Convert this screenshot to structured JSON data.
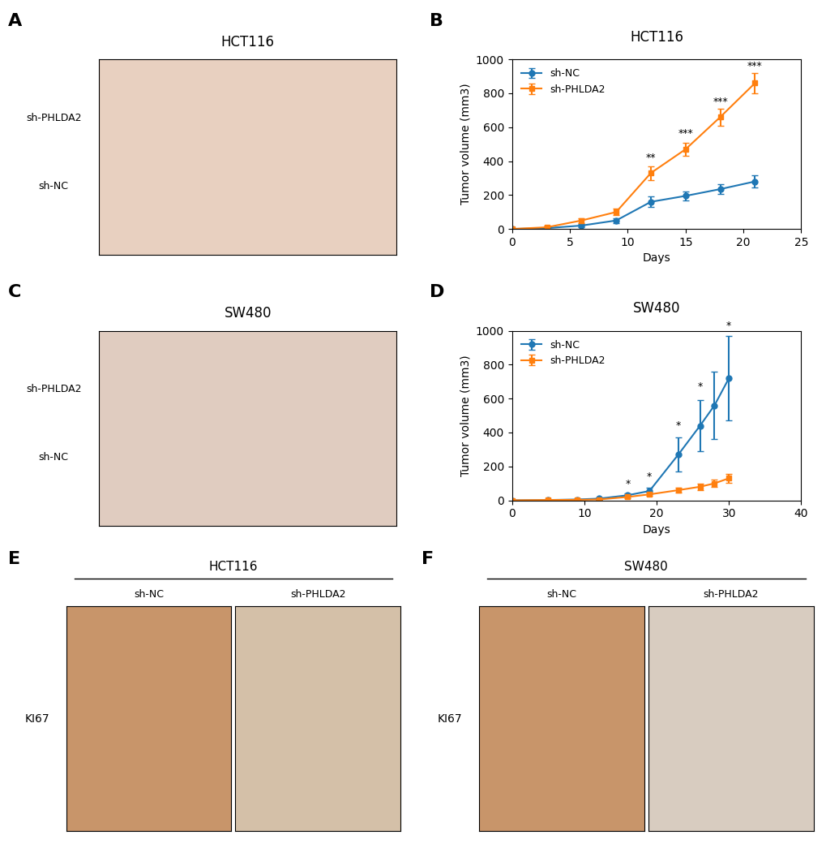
{
  "chart_data": [
    {
      "type": "image",
      "panel": "A",
      "title": "HCT116",
      "annotations": [
        "sh-PHLDA2",
        "sh-NC"
      ],
      "color": "#e8d0c0"
    },
    {
      "type": "line",
      "panel": "B",
      "title": "HCT116",
      "xlabel": "Days",
      "ylabel": "Tumor volume (mm3)",
      "xlim": [
        0,
        25
      ],
      "ylim": [
        0,
        1000
      ],
      "xticks": [
        0,
        5,
        10,
        15,
        20,
        25
      ],
      "yticks": [
        0,
        200,
        400,
        600,
        800,
        1000
      ],
      "x": [
        0,
        3,
        6,
        9,
        12,
        15,
        18,
        21
      ],
      "series": [
        {
          "name": "sh-NC",
          "marker": "o",
          "values": [
            0,
            5,
            20,
            50,
            160,
            195,
            235,
            280
          ],
          "error": [
            0,
            5,
            10,
            15,
            30,
            25,
            30,
            35
          ]
        },
        {
          "name": "sh-PHLDA2",
          "marker": "s",
          "values": [
            0,
            10,
            50,
            100,
            330,
            470,
            660,
            860
          ],
          "error": [
            0,
            8,
            15,
            20,
            40,
            40,
            50,
            60
          ]
        }
      ],
      "annotations": [
        {
          "x": 12,
          "y": 390,
          "text": "**"
        },
        {
          "x": 15,
          "y": 530,
          "text": "***"
        },
        {
          "x": 18,
          "y": 720,
          "text": "***"
        },
        {
          "x": 21,
          "y": 930,
          "text": "***"
        }
      ],
      "legend": "upper left"
    },
    {
      "type": "image",
      "panel": "C",
      "title": "SW480",
      "annotations": [
        "sh-PHLDA2",
        "sh-NC"
      ],
      "color": "#e0ccc0"
    },
    {
      "type": "line",
      "panel": "D",
      "title": "SW480",
      "xlabel": "Days",
      "ylabel": "Tumor volume (mm3)",
      "xlim": [
        0,
        40
      ],
      "ylim": [
        0,
        1000
      ],
      "xticks": [
        0,
        10,
        20,
        30,
        40
      ],
      "yticks": [
        0,
        200,
        400,
        600,
        800,
        1000
      ],
      "x": [
        0,
        5,
        9,
        12,
        16,
        19,
        23,
        26,
        28,
        30
      ],
      "series": [
        {
          "name": "sh-NC",
          "marker": "o",
          "values": [
            0,
            2,
            5,
            10,
            30,
            55,
            270,
            440,
            560,
            720
          ],
          "error": [
            0,
            2,
            3,
            5,
            10,
            20,
            100,
            150,
            200,
            250
          ]
        },
        {
          "name": "sh-PHLDA2",
          "marker": "s",
          "values": [
            0,
            2,
            3,
            5,
            20,
            35,
            60,
            80,
            100,
            130
          ],
          "error": [
            0,
            1,
            2,
            3,
            8,
            10,
            15,
            18,
            22,
            28
          ]
        }
      ],
      "annotations": [
        {
          "x": 16,
          "y": 65,
          "text": "*"
        },
        {
          "x": 19,
          "y": 110,
          "text": "*"
        },
        {
          "x": 23,
          "y": 410,
          "text": "*"
        },
        {
          "x": 26,
          "y": 640,
          "text": "*"
        },
        {
          "x": 30,
          "y": 1000,
          "text": "*"
        }
      ],
      "legend": "upper left"
    },
    {
      "type": "image",
      "panel": "E",
      "title": "HCT116",
      "categories": [
        "sh-NC",
        "sh-PHLDA2"
      ],
      "ylabel": "KI67",
      "colors": [
        "#c8956a",
        "#d4c0a8"
      ]
    },
    {
      "type": "image",
      "panel": "F",
      "title": "SW480",
      "categories": [
        "sh-NC",
        "sh-PHLDA2"
      ],
      "ylabel": "KI67",
      "colors": [
        "#c8956a",
        "#d8ccc0"
      ]
    }
  ]
}
